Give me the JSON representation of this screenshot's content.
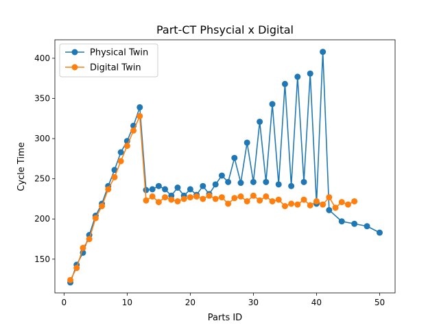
{
  "chart_data": {
    "type": "line",
    "title": "Part-CT Phsycial x Digital",
    "xlabel": "Parts ID",
    "ylabel": "Cycle Time",
    "xlim": [
      -1.45,
      52.45
    ],
    "ylim": [
      108,
      423
    ],
    "x_ticks": [
      0,
      10,
      20,
      30,
      40,
      50
    ],
    "y_ticks": [
      150,
      200,
      250,
      300,
      350,
      400
    ],
    "grid": false,
    "legend_position": "upper left",
    "series": [
      {
        "name": "Physical Twin",
        "color": "#1f77b4",
        "marker": "circle",
        "x": [
          1,
          2,
          3,
          4,
          5,
          6,
          7,
          8,
          9,
          10,
          11,
          12,
          13,
          14,
          15,
          16,
          17,
          18,
          19,
          20,
          21,
          22,
          23,
          24,
          25,
          26,
          27,
          28,
          29,
          30,
          31,
          32,
          33,
          34,
          35,
          36,
          37,
          38,
          39,
          40,
          41,
          42,
          44,
          46,
          48,
          50
        ],
        "y": [
          121,
          143,
          158,
          180,
          204,
          219,
          241,
          261,
          283,
          297,
          316,
          339,
          236,
          237,
          241,
          237,
          229,
          239,
          229,
          237,
          230,
          241,
          231,
          243,
          254,
          246,
          276,
          245,
          295,
          246,
          321,
          246,
          343,
          243,
          368,
          241,
          377,
          246,
          381,
          219,
          408,
          211,
          197,
          194,
          191,
          183
        ]
      },
      {
        "name": "Digital Twin",
        "color": "#ff7f0e",
        "marker": "circle",
        "x": [
          1,
          2,
          3,
          4,
          5,
          6,
          7,
          8,
          9,
          10,
          11,
          12,
          13,
          14,
          15,
          16,
          17,
          18,
          19,
          20,
          21,
          22,
          23,
          24,
          25,
          26,
          27,
          28,
          29,
          30,
          31,
          32,
          33,
          34,
          35,
          36,
          37,
          38,
          39,
          40,
          41,
          42,
          43,
          44,
          45,
          46
        ],
        "y": [
          124,
          139,
          164,
          175,
          201,
          216,
          237,
          252,
          272,
          291,
          310,
          328,
          223,
          228,
          221,
          227,
          224,
          222,
          225,
          227,
          228,
          225,
          229,
          225,
          227,
          219,
          226,
          228,
          222,
          229,
          223,
          228,
          222,
          224,
          216,
          219,
          218,
          224,
          217,
          222,
          218,
          227,
          214,
          221,
          218,
          222
        ]
      }
    ]
  }
}
